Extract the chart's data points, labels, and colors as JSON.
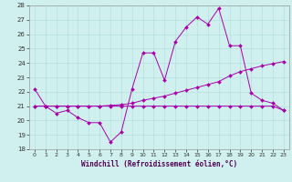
{
  "xlabel": "Windchill (Refroidissement éolien,°C)",
  "background_color": "#cff0ee",
  "grid_color": "#b8e2e0",
  "line_color": "#aa00aa",
  "ylim": [
    18,
    28
  ],
  "xlim": [
    -0.5,
    23.5
  ],
  "yticks": [
    18,
    19,
    20,
    21,
    22,
    23,
    24,
    25,
    26,
    27,
    28
  ],
  "xticks": [
    0,
    1,
    2,
    3,
    4,
    5,
    6,
    7,
    8,
    9,
    10,
    11,
    12,
    13,
    14,
    15,
    16,
    17,
    18,
    19,
    20,
    21,
    22,
    23
  ],
  "s1_x": [
    0,
    1,
    2,
    3,
    4,
    5,
    6,
    7,
    8,
    9,
    10,
    11,
    12,
    13,
    14,
    15,
    16,
    17,
    18,
    19,
    20,
    21,
    22,
    23
  ],
  "s1_y": [
    22.2,
    21.0,
    20.5,
    20.7,
    20.2,
    19.85,
    19.85,
    18.5,
    19.2,
    22.2,
    24.7,
    24.7,
    22.8,
    25.5,
    26.5,
    27.2,
    26.7,
    27.8,
    25.2,
    25.2,
    21.9,
    21.4,
    21.2,
    20.7
  ],
  "s2_x": [
    0,
    1,
    2,
    3,
    4,
    5,
    6,
    7,
    8,
    9,
    10,
    11,
    12,
    13,
    14,
    15,
    16,
    17,
    18,
    19,
    20,
    21,
    22,
    23
  ],
  "s2_y": [
    21.0,
    21.0,
    21.0,
    21.0,
    21.0,
    21.0,
    21.0,
    21.0,
    21.0,
    21.0,
    21.0,
    21.0,
    21.0,
    21.0,
    21.0,
    21.0,
    21.0,
    21.0,
    21.0,
    21.0,
    21.0,
    21.0,
    21.0,
    20.7
  ],
  "s3_x": [
    0,
    1,
    2,
    3,
    4,
    5,
    6,
    7,
    8,
    9,
    10,
    11,
    12,
    13,
    14,
    15,
    16,
    17,
    18,
    19,
    20,
    21,
    22,
    23
  ],
  "s3_y": [
    21.0,
    21.0,
    21.0,
    21.0,
    21.0,
    21.0,
    21.0,
    21.05,
    21.1,
    21.2,
    21.4,
    21.55,
    21.7,
    21.9,
    22.1,
    22.3,
    22.5,
    22.7,
    23.1,
    23.4,
    23.6,
    23.8,
    23.95,
    24.1
  ],
  "xlabel_color": "#550055",
  "tick_color": "#333333"
}
